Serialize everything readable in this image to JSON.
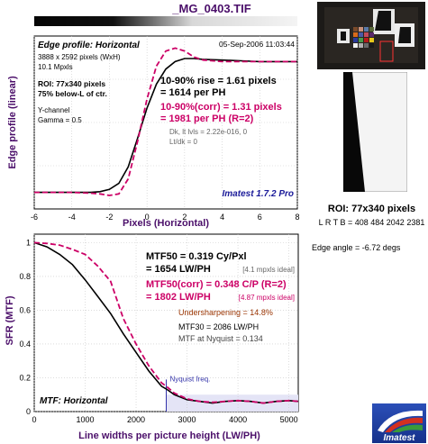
{
  "file_title": "_MG_0403.TIF",
  "roi": {
    "title": "ROI: 77x340 pixels",
    "coords": "L R T B = 408 484  2042 2381"
  },
  "edge_angle": "Edge angle = -6.72 degs",
  "logo_text": "Imatest",
  "chart_data": [
    {
      "type": "line",
      "title": "Edge profile: Horizontal",
      "xlabel": "Pixels (Horizontal)",
      "ylabel": "Edge profile (linear)",
      "xlim": [
        -6,
        8
      ],
      "xticks": [
        "-6",
        "-4",
        "-2",
        "0",
        "2",
        "4",
        "6",
        "8"
      ],
      "grid": true,
      "date": "05-Sep-2006 11:03:44",
      "info": [
        "3888 x 2592 pixels (WxH)",
        "10.1 Mpxls"
      ],
      "roi_info": [
        "ROI: 77x340 pixels",
        "75% below-L of ctr."
      ],
      "channel_info": [
        "Y-channel",
        "Gamma = 0.5"
      ],
      "rise": [
        "10-90% rise = 1.61 pixels",
        "= 1614 per PH"
      ],
      "rise_corr": [
        "10-90%(corr) = 1.31 pixels",
        "= 1981 per PH  (R=2)"
      ],
      "levels": [
        "Dk, lt lvls = 2.22e-016, 0",
        "Lt/dk = 0"
      ],
      "version": "Imatest 1.7.2 Pro",
      "series": [
        {
          "color": "#000000",
          "x": [
            -6,
            -5,
            -4,
            -3,
            -2.5,
            -2,
            -1.5,
            -1,
            -0.5,
            0,
            0.5,
            1,
            1.5,
            2,
            2.5,
            3,
            4,
            5,
            6,
            7,
            8
          ],
          "y": [
            0.06,
            0.06,
            0.06,
            0.06,
            0.065,
            0.08,
            0.12,
            0.23,
            0.42,
            0.62,
            0.78,
            0.88,
            0.93,
            0.95,
            0.95,
            0.945,
            0.94,
            0.935,
            0.93,
            0.93,
            0.93
          ]
        },
        {
          "color": "#cc0066",
          "dashed": true,
          "x": [
            -6,
            -5,
            -4,
            -3,
            -2.5,
            -2,
            -1.5,
            -1,
            -0.5,
            0,
            0.5,
            1,
            1.5,
            2,
            2.5,
            3,
            4,
            5,
            6,
            7,
            8
          ],
          "y": [
            0.06,
            0.06,
            0.06,
            0.055,
            0.05,
            0.04,
            0.05,
            0.15,
            0.4,
            0.68,
            0.9,
            1.0,
            1.02,
            1.0,
            0.96,
            0.94,
            0.93,
            0.93,
            0.93,
            0.93,
            0.93
          ]
        }
      ]
    },
    {
      "type": "line",
      "title": "MTF: Horizontal",
      "xlabel": "Line widths per picture height (LW/PH)",
      "ylabel": "SFR (MTF)",
      "xlim": [
        0,
        5184
      ],
      "ylim": [
        0,
        1.05
      ],
      "xticks": [
        "0",
        "1000",
        "2000",
        "3000",
        "4000",
        "5000"
      ],
      "yticks": [
        "0",
        "0.2",
        "0.4",
        "0.6",
        "0.8",
        "1"
      ],
      "grid": true,
      "mtf50": [
        "MTF50 = 0.319 Cy/Pxl",
        "= 1654 LW/PH"
      ],
      "mtf50_ideal": "[4.1 mpxls ideal]",
      "mtf50_corr": [
        "MTF50(corr) = 0.348 C/P  (R=2)",
        "= 1802 LW/PH"
      ],
      "mtf50_corr_ideal": "[4.87 mpxls ideal]",
      "undersharpening": "Undersharpening = 14.8%",
      "mtf30": "MTF30 = 2086 LW/PH",
      "mtf_nyquist": "MTF at Nyquist = 0.134",
      "nyquist_label": "Nyquist freq.",
      "nyquist_x": 2592,
      "series": [
        {
          "color": "#000000",
          "x": [
            0,
            250,
            500,
            750,
            1000,
            1250,
            1500,
            1750,
            2000,
            2250,
            2500,
            2592,
            2750,
            3000,
            3250,
            3500,
            3750,
            4000,
            4250,
            4500,
            4750,
            5000,
            5184
          ],
          "y": [
            1.0,
            0.975,
            0.93,
            0.87,
            0.78,
            0.68,
            0.58,
            0.46,
            0.35,
            0.24,
            0.15,
            0.134,
            0.1,
            0.07,
            0.06,
            0.05,
            0.06,
            0.065,
            0.06,
            0.05,
            0.06,
            0.065,
            0.06
          ]
        },
        {
          "color": "#cc0066",
          "dashed": true,
          "x": [
            0,
            250,
            500,
            750,
            1000,
            1250,
            1500,
            1750,
            2000,
            2250,
            2500,
            2592,
            2750,
            3000,
            3250,
            3500,
            3750,
            4000,
            4250,
            4500,
            4750,
            5000,
            5184
          ],
          "y": [
            1.0,
            0.995,
            0.985,
            0.96,
            0.93,
            0.86,
            0.77,
            0.55,
            0.4,
            0.27,
            0.17,
            0.15,
            0.11,
            0.075,
            0.06,
            0.055,
            0.06,
            0.065,
            0.06,
            0.05,
            0.06,
            0.065,
            0.06
          ]
        }
      ]
    }
  ]
}
